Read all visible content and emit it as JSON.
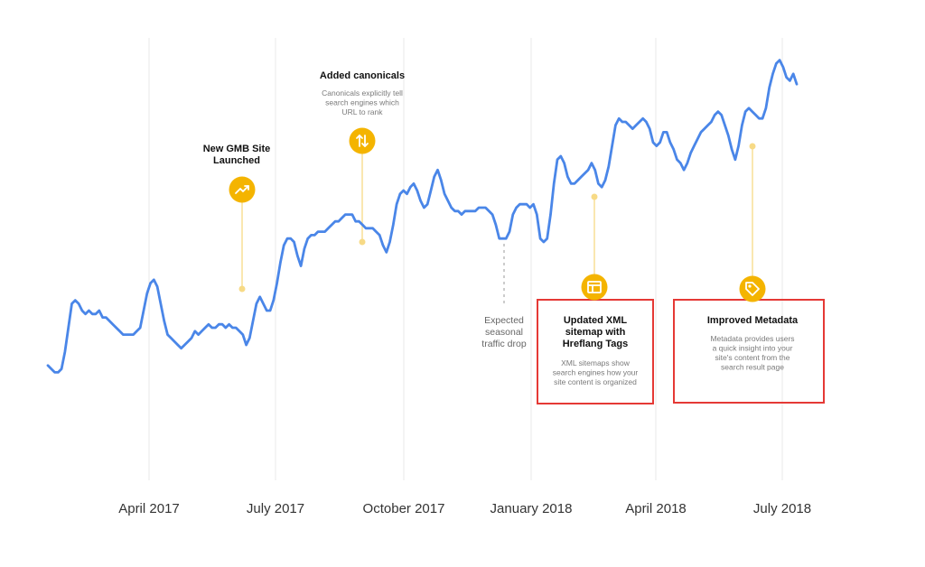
{
  "chart_data": {
    "type": "line",
    "x_axis": {
      "tick_labels": [
        "April 2017",
        "July 2017",
        "October 2017",
        "January 2018",
        "April 2018",
        "July 2018"
      ]
    },
    "series": [
      {
        "color": "#4a86e8",
        "values": [
          0.29,
          0.28,
          0.27,
          0.27,
          0.28,
          0.33,
          0.4,
          0.47,
          0.48,
          0.47,
          0.45,
          0.44,
          0.45,
          0.44,
          0.44,
          0.45,
          0.43,
          0.43,
          0.42,
          0.41,
          0.4,
          0.39,
          0.38,
          0.38,
          0.38,
          0.38,
          0.39,
          0.4,
          0.45,
          0.5,
          0.53,
          0.54,
          0.52,
          0.47,
          0.42,
          0.38,
          0.37,
          0.36,
          0.35,
          0.34,
          0.35,
          0.36,
          0.37,
          0.39,
          0.38,
          0.39,
          0.4,
          0.41,
          0.4,
          0.4,
          0.41,
          0.41,
          0.4,
          0.41,
          0.4,
          0.4,
          0.39,
          0.38,
          0.35,
          0.37,
          0.42,
          0.47,
          0.49,
          0.47,
          0.45,
          0.45,
          0.48,
          0.53,
          0.59,
          0.64,
          0.66,
          0.66,
          0.65,
          0.61,
          0.58,
          0.63,
          0.66,
          0.67,
          0.67,
          0.68,
          0.68,
          0.68,
          0.69,
          0.7,
          0.71,
          0.71,
          0.72,
          0.73,
          0.73,
          0.73,
          0.71,
          0.71,
          0.7,
          0.69,
          0.69,
          0.69,
          0.68,
          0.67,
          0.64,
          0.62,
          0.65,
          0.7,
          0.76,
          0.79,
          0.8,
          0.79,
          0.81,
          0.82,
          0.8,
          0.77,
          0.75,
          0.76,
          0.8,
          0.84,
          0.86,
          0.83,
          0.79,
          0.77,
          0.75,
          0.74,
          0.74,
          0.73,
          0.74,
          0.74,
          0.74,
          0.74,
          0.75,
          0.75,
          0.75,
          0.74,
          0.73,
          0.7,
          0.66,
          0.66,
          0.66,
          0.68,
          0.73,
          0.75,
          0.76,
          0.76,
          0.76,
          0.75,
          0.76,
          0.73,
          0.66,
          0.65,
          0.66,
          0.73,
          0.82,
          0.89,
          0.9,
          0.88,
          0.84,
          0.82,
          0.82,
          0.83,
          0.84,
          0.85,
          0.86,
          0.88,
          0.86,
          0.82,
          0.81,
          0.83,
          0.87,
          0.93,
          0.99,
          1.01,
          1.0,
          1.0,
          0.99,
          0.98,
          0.99,
          1.0,
          1.01,
          1.0,
          0.98,
          0.94,
          0.93,
          0.94,
          0.97,
          0.97,
          0.94,
          0.92,
          0.89,
          0.88,
          0.86,
          0.88,
          0.91,
          0.93,
          0.95,
          0.97,
          0.98,
          0.99,
          1.0,
          1.02,
          1.03,
          1.02,
          0.99,
          0.96,
          0.92,
          0.89,
          0.93,
          0.99,
          1.03,
          1.04,
          1.03,
          1.02,
          1.01,
          1.01,
          1.04,
          1.1,
          1.14,
          1.17,
          1.18,
          1.16,
          1.13,
          1.12,
          1.14,
          1.11
        ]
      }
    ],
    "annotations": [
      {
        "title_lines": [
          "New GMB Site",
          "Launched"
        ],
        "desc_lines": [],
        "icon": "trending-up-icon",
        "color": "#f4b400"
      },
      {
        "title_lines": [
          "Added canonicals"
        ],
        "desc_lines": [
          "Canonicals explicitly tell",
          "search engines which",
          "URL to rank"
        ],
        "icon": "swap-vertical-icon",
        "color": "#f4b400"
      },
      {
        "title_lines": [
          "Updated XML",
          "sitemap with",
          "Hreflang Tags"
        ],
        "desc_lines": [
          "XML sitemaps show",
          "search engines how your",
          "site content is organized"
        ],
        "icon": "sitemap-icon",
        "color": "#f4b400"
      },
      {
        "title_lines": [
          "Improved Metadata"
        ],
        "desc_lines": [
          "Metadata provides users",
          "a quick insight into your",
          "site's content from the",
          "search result page"
        ],
        "icon": "tag-icon",
        "color": "#f4b400"
      }
    ],
    "seasonal_note": {
      "lines": [
        "Expected",
        "seasonal",
        "traffic drop"
      ]
    },
    "grid": "vertical",
    "colors": {
      "line": "#4a86e8",
      "accent": "#f4b400",
      "highlight_box": "#e53935",
      "grid": "#e8e8e8"
    }
  }
}
